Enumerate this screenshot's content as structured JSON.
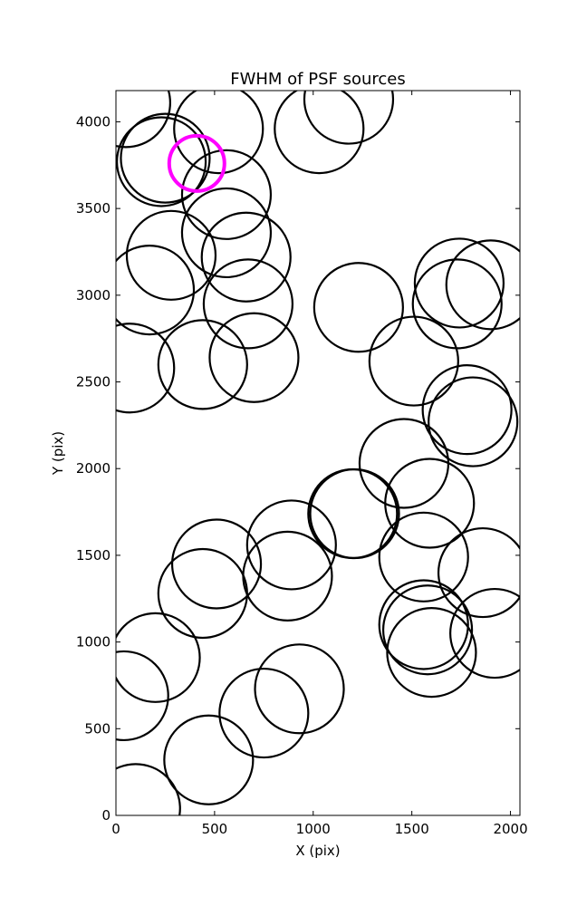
{
  "chart_data": {
    "type": "scatter",
    "title": "FWHM of PSF sources",
    "xlabel": "X (pix)",
    "ylabel": "Y (pix)",
    "xlim": [
      0,
      2048
    ],
    "ylim": [
      0,
      4180
    ],
    "xticks": [
      0,
      500,
      1000,
      1500,
      2000
    ],
    "yticks": [
      0,
      500,
      1000,
      1500,
      2000,
      2500,
      3000,
      3500,
      4000
    ],
    "grid": false,
    "marker": "open circle",
    "circle_radius_data": 225,
    "colors": {
      "normal": "#000000",
      "highlight": "#ff00ff"
    },
    "highlight": {
      "x": 410,
      "y": 3760,
      "radius_data": 140
    },
    "points": [
      [
        50,
        4110
      ],
      [
        520,
        3960
      ],
      [
        1180,
        4130
      ],
      [
        1030,
        3960
      ],
      [
        230,
        3770
      ],
      [
        560,
        3580
      ],
      [
        250,
        3790
      ],
      [
        280,
        3230
      ],
      [
        560,
        3360
      ],
      [
        170,
        3030
      ],
      [
        660,
        3220
      ],
      [
        670,
        2950
      ],
      [
        440,
        2600
      ],
      [
        70,
        2580
      ],
      [
        700,
        2640
      ],
      [
        1230,
        2930
      ],
      [
        1510,
        2620
      ],
      [
        1740,
        3070
      ],
      [
        1730,
        2950
      ],
      [
        1900,
        3060
      ],
      [
        1780,
        2340
      ],
      [
        1810,
        2270
      ],
      [
        1460,
        2030
      ],
      [
        1590,
        1800
      ],
      [
        1200,
        1740
      ],
      [
        1210,
        1740
      ],
      [
        890,
        1560
      ],
      [
        870,
        1380
      ],
      [
        510,
        1450
      ],
      [
        440,
        1280
      ],
      [
        1560,
        1490
      ],
      [
        1860,
        1400
      ],
      [
        1560,
        1100
      ],
      [
        1580,
        1070
      ],
      [
        1600,
        940
      ],
      [
        1920,
        1050
      ],
      [
        200,
        910
      ],
      [
        40,
        690
      ],
      [
        930,
        730
      ],
      [
        750,
        590
      ],
      [
        470,
        320
      ],
      [
        100,
        40
      ]
    ]
  }
}
